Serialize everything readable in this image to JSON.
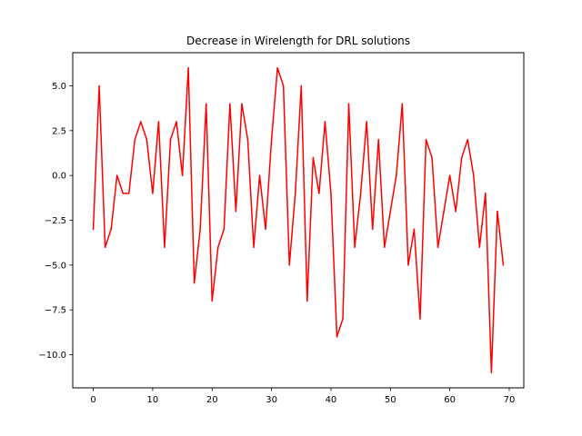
{
  "chart_data": {
    "type": "line",
    "title": "Decrease in Wirelength for DRL solutions",
    "xlabel": "",
    "ylabel": "",
    "xlim": [
      -3.45,
      72.45
    ],
    "ylim": [
      -11.85,
      6.85
    ],
    "xticks": [
      0,
      10,
      20,
      30,
      40,
      50,
      60,
      70
    ],
    "xtick_labels": [
      "0",
      "10",
      "20",
      "30",
      "40",
      "50",
      "60",
      "70"
    ],
    "yticks": [
      5.0,
      2.5,
      0.0,
      -2.5,
      -5.0,
      -7.5,
      -10.0
    ],
    "ytick_labels": [
      "5.0",
      "2.5",
      "0.0",
      "−2.5",
      "−5.0",
      "−7.5",
      "−10.0"
    ],
    "grid": false,
    "series": [
      {
        "color": "#ff0000",
        "x": [
          0,
          1,
          2,
          3,
          4,
          5,
          6,
          7,
          8,
          9,
          10,
          11,
          12,
          13,
          14,
          15,
          16,
          17,
          18,
          19,
          20,
          21,
          22,
          23,
          24,
          25,
          26,
          27,
          28,
          29,
          30,
          31,
          32,
          33,
          34,
          35,
          36,
          37,
          38,
          39,
          40,
          41,
          42,
          43,
          44,
          45,
          46,
          47,
          48,
          49,
          50,
          51,
          52,
          53,
          54,
          55,
          56,
          57,
          58,
          59,
          60,
          61,
          62,
          63,
          64,
          65,
          66,
          67,
          68,
          69
        ],
        "values": [
          -3,
          5,
          -4,
          -3,
          0,
          -1,
          -1,
          2,
          3,
          2,
          -1,
          3,
          -4,
          2,
          3,
          0,
          6,
          -6,
          -3,
          4,
          -7,
          -4,
          -3,
          4,
          -2,
          4,
          2,
          -4,
          0,
          -3,
          2,
          6,
          5,
          -5,
          -1,
          5,
          -7,
          1,
          -1,
          3,
          -1,
          -9,
          -8,
          4,
          -4,
          -1,
          3,
          -3,
          2,
          -4,
          -2,
          0,
          4,
          -5,
          -3,
          -8,
          2,
          1,
          -4,
          -2,
          0,
          -2,
          1,
          2,
          0,
          -4,
          -1,
          -11,
          -2,
          -5
        ]
      }
    ]
  }
}
